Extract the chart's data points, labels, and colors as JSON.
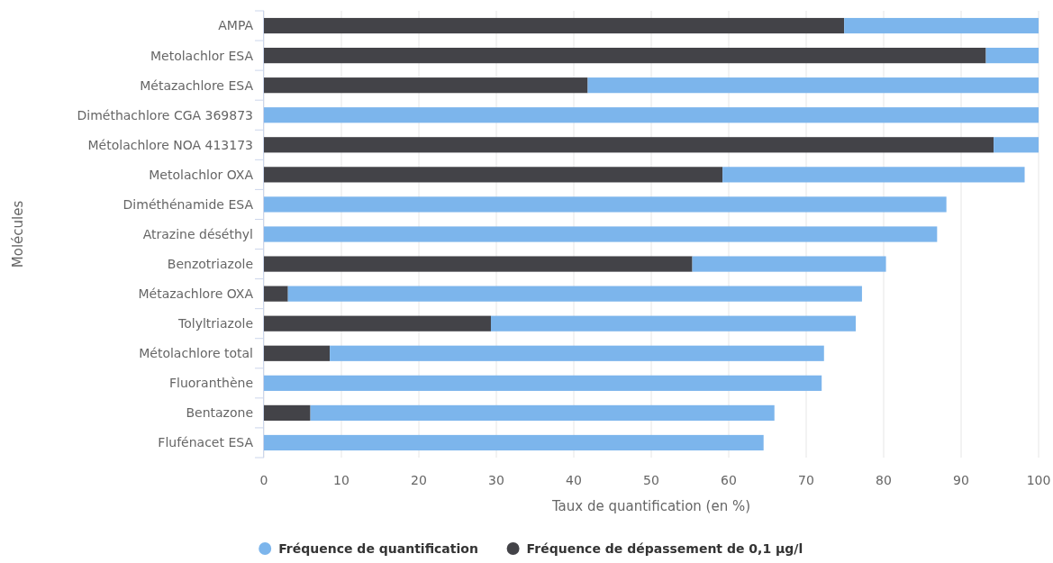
{
  "chart_data": {
    "type": "bar",
    "orientation": "horizontal",
    "stacked": true,
    "categories": [
      "AMPA",
      "Metolachlor ESA",
      "Métazachlore ESA",
      "Diméthachlore CGA 369873",
      "Métolachlore NOA 413173",
      "Metolachlor OXA",
      "Diméthénamide ESA",
      "Atrazine déséthyl",
      "Benzotriazole",
      "Métazachlore OXA",
      "Tolyltriazole",
      "Métolachlore total",
      "Fluoranthène",
      "Bentazone",
      "Flufénacet ESA"
    ],
    "series": [
      {
        "name": "Fréquence de dépassement de 0,1 µg/l",
        "color": "#434348",
        "values": [
          74.9,
          93.2,
          41.8,
          0,
          94.2,
          59.2,
          0,
          0,
          55.3,
          3.1,
          29.3,
          8.5,
          0,
          6.0,
          0
        ]
      },
      {
        "name": "Fréquence de quantification",
        "color": "#7cb5ec",
        "values": [
          25.1,
          6.8,
          58.2,
          100,
          5.8,
          39.0,
          88.1,
          86.9,
          25.0,
          74.1,
          47.1,
          63.8,
          72.0,
          59.9,
          64.5
        ]
      }
    ],
    "xlim": [
      0,
      100
    ],
    "xticks": [
      0,
      10,
      20,
      30,
      40,
      50,
      60,
      70,
      80,
      90,
      100
    ],
    "xlabel": "Taux de quantification (en %)",
    "ylabel": "Molécules",
    "grid": "x",
    "legend": "bottom"
  }
}
